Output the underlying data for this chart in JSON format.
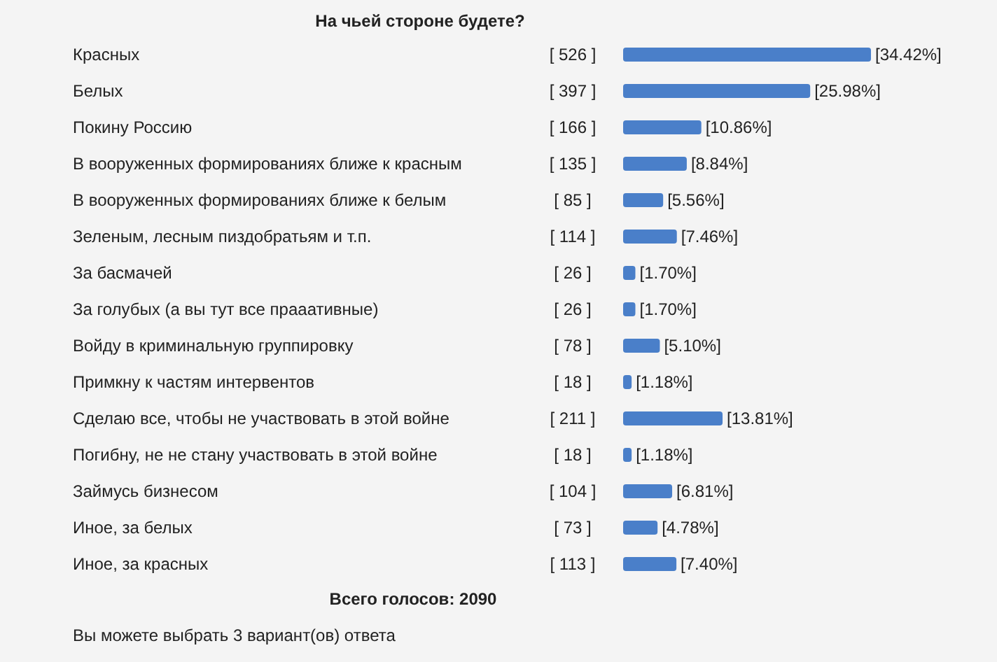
{
  "chart_data": {
    "type": "bar",
    "orientation": "horizontal",
    "title": "На чьей стороне будете?",
    "categories": [
      "Красных",
      "Белых",
      "Покину Россию",
      "В вооруженных формированиях ближе к красным",
      "В вооруженных формированиях ближе к белым",
      "Зеленым, лесным пиздобратьям и т.п.",
      "За басмачей",
      "За голубых (а вы тут все прааативные)",
      "Войду в криминальную группировку",
      "Примкну к частям интервентов",
      "Сделаю все, чтобы не участвовать в этой войне",
      "Погибну, не не стану участвовать в этой войне",
      "Займусь бизнесом",
      "Иное, за белых",
      "Иное, за красных"
    ],
    "values": [
      34.42,
      25.98,
      10.86,
      8.84,
      5.56,
      7.46,
      1.7,
      1.7,
      5.1,
      1.18,
      13.81,
      1.18,
      6.81,
      4.78,
      7.4
    ],
    "value_labels": [
      "[34.42%]",
      "[25.98%]",
      "[10.86%]",
      "[8.84%]",
      "[5.56%]",
      "[7.46%]",
      "[1.70%]",
      "[1.70%]",
      "[5.10%]",
      "[1.18%]",
      "[13.81%]",
      "[1.18%]",
      "[6.81%]",
      "[4.78%]",
      "[7.40%]"
    ],
    "color": "#4a7fc9",
    "tick_labels": "y",
    "annotations": [
      "[ 526 ]",
      "[ 397 ]",
      "[ 166 ]",
      "[ 135 ]",
      "[ 85 ]",
      "[ 114 ]",
      "[ 26 ]",
      "[ 26 ]",
      "[ 78 ]",
      "[ 18 ]",
      "[ 211 ]",
      "[ 18 ]",
      "[ 104 ]",
      "[ 73 ]",
      "[ 113 ]",
      "Всего голосов: 2090",
      "Вы можете выбрать 3 вариант(ов) ответа"
    ]
  }
}
